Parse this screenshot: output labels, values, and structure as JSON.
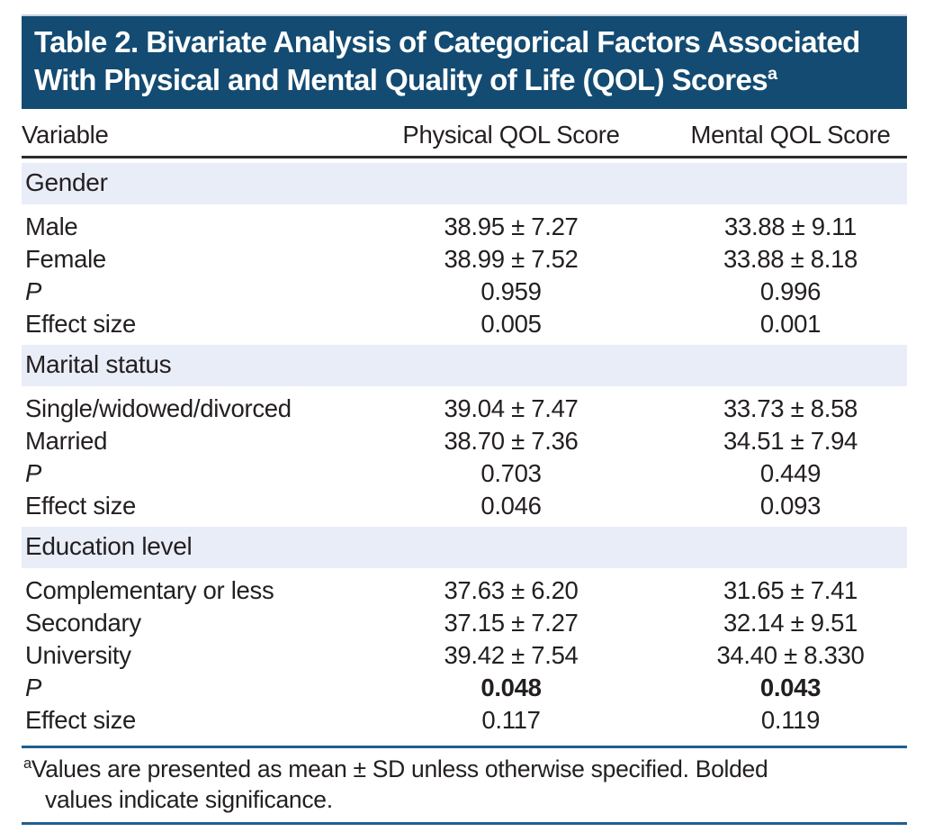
{
  "colors": {
    "navy": "#134B72",
    "band": "#E9EDF8",
    "rule-blue": "#215E8E",
    "rule-dark": "#2B2B2B",
    "text": "#231F20"
  },
  "title": {
    "line1": "Table 2. Bivariate Analysis of Categorical Factors Associated",
    "line2": "With Physical and Mental Quality of Life (QOL) Scores",
    "superscript": "a"
  },
  "columns": {
    "variable": "Variable",
    "physical": "Physical QOL Score",
    "mental": "Mental QOL Score"
  },
  "sections": [
    {
      "name": "Gender",
      "rows": [
        {
          "label": "Male",
          "physical": "38.95 ± 7.27",
          "mental": "33.88 ± 9.11"
        },
        {
          "label": "Female",
          "physical": "38.99 ± 7.52",
          "mental": "33.88 ± 8.18"
        },
        {
          "label": "P",
          "physical": "0.959",
          "mental": "0.996",
          "label_style": "italic"
        },
        {
          "label": "Effect size",
          "physical": "0.005",
          "mental": "0.001"
        }
      ]
    },
    {
      "name": "Marital status",
      "rows": [
        {
          "label": "Single/widowed/divorced",
          "physical": "39.04 ± 7.47",
          "mental": "33.73 ± 8.58"
        },
        {
          "label": "Married",
          "physical": "38.70 ± 7.36",
          "mental": "34.51 ± 7.94"
        },
        {
          "label": "P",
          "physical": "0.703",
          "mental": "0.449",
          "label_style": "italic"
        },
        {
          "label": "Effect size",
          "physical": "0.046",
          "mental": "0.093"
        }
      ]
    },
    {
      "name": "Education level",
      "rows": [
        {
          "label": "Complementary or less",
          "physical": "37.63 ± 6.20",
          "mental": "31.65 ± 7.41"
        },
        {
          "label": "Secondary",
          "physical": "37.15 ± 7.27",
          "mental": "32.14 ± 9.51"
        },
        {
          "label": "University",
          "physical": "39.42 ± 7.54",
          "mental": "34.40 ± 8.330"
        },
        {
          "label": "P",
          "physical": "0.048",
          "mental": "0.043",
          "label_style": "italic",
          "significant": true
        },
        {
          "label": "Effect size",
          "physical": "0.117",
          "mental": "0.119"
        }
      ]
    }
  ],
  "footnote": {
    "marker": "a",
    "line1": "Values are presented as mean ± SD unless otherwise specified. Bolded",
    "line2": "values indicate significance."
  }
}
